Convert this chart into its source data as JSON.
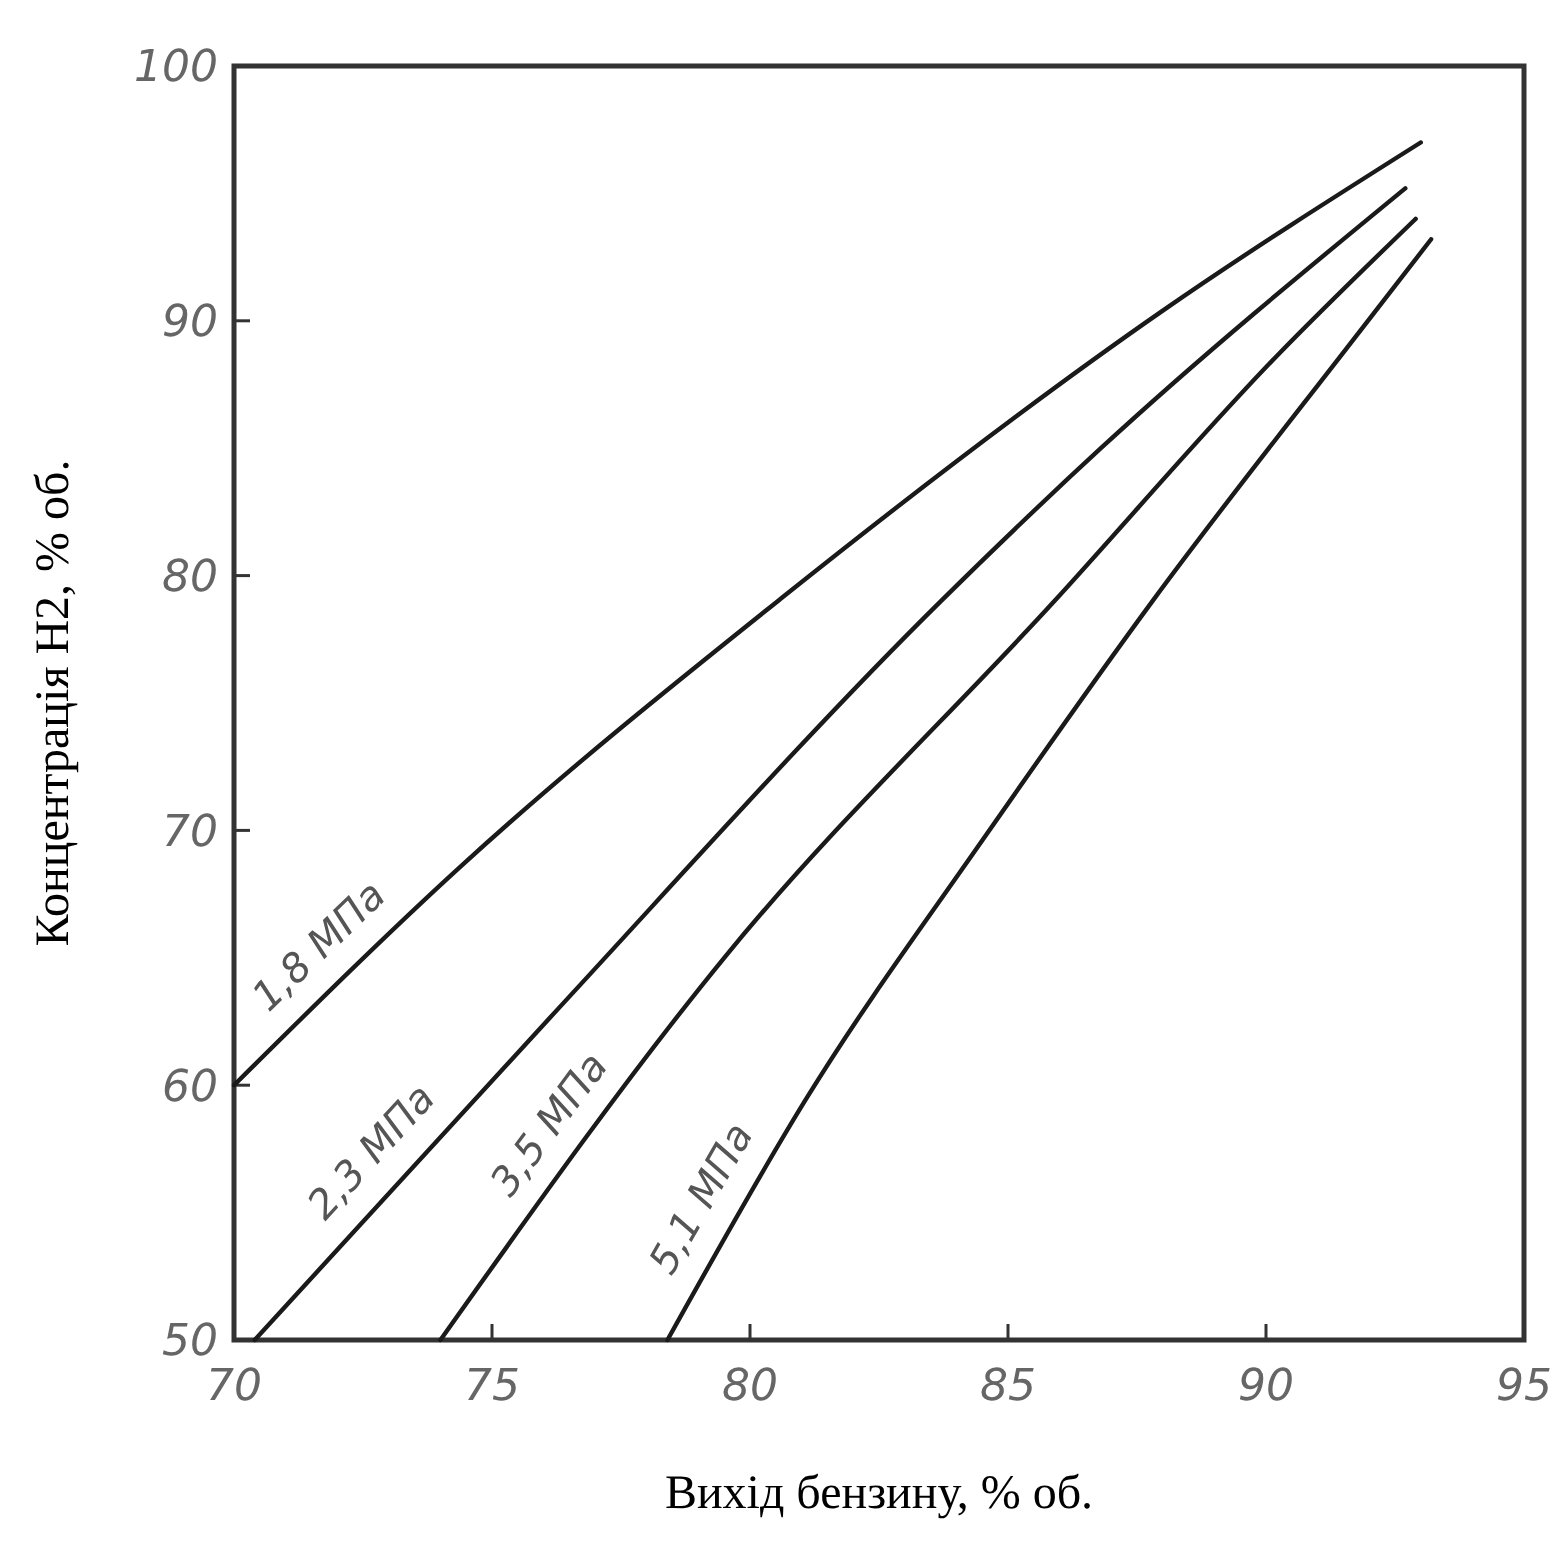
{
  "chart_data": {
    "type": "line",
    "xlabel": "Вихід бензину, % об.",
    "ylabel": "Концентрація H2, % об.",
    "xlim": [
      70,
      95
    ],
    "ylim": [
      50,
      100
    ],
    "xticks": [
      70,
      75,
      80,
      85,
      90,
      95
    ],
    "yticks": [
      50,
      60,
      70,
      80,
      90,
      100
    ],
    "grid": false,
    "legend": false,
    "marker": "none",
    "line_style": "solid",
    "series": [
      {
        "name": "1,8 МПа",
        "color": "#1a1a1a",
        "x": [
          70,
          74.4,
          80.6,
          88,
          93
        ],
        "values": [
          60,
          68.6,
          79.1,
          90.4,
          97
        ]
      },
      {
        "name": "2,3 МПа",
        "color": "#1a1a1a",
        "x": [
          70.4,
          76.1,
          83.7,
          86.8,
          92.7
        ],
        "values": [
          50,
          62.6,
          79,
          85,
          95.2
        ]
      },
      {
        "name": "3,5 МПа",
        "color": "#1a1a1a",
        "x": [
          74,
          79.5,
          85.9,
          90.2,
          92.9
        ],
        "values": [
          50,
          65,
          79,
          88.6,
          94
        ]
      },
      {
        "name": "5,1 МПа",
        "color": "#1a1a1a",
        "x": [
          78.4,
          81.1,
          84.5,
          87.8,
          91.9,
          93.2
        ],
        "values": [
          50,
          59.5,
          69.6,
          79,
          89.8,
          93.2
        ]
      }
    ]
  }
}
